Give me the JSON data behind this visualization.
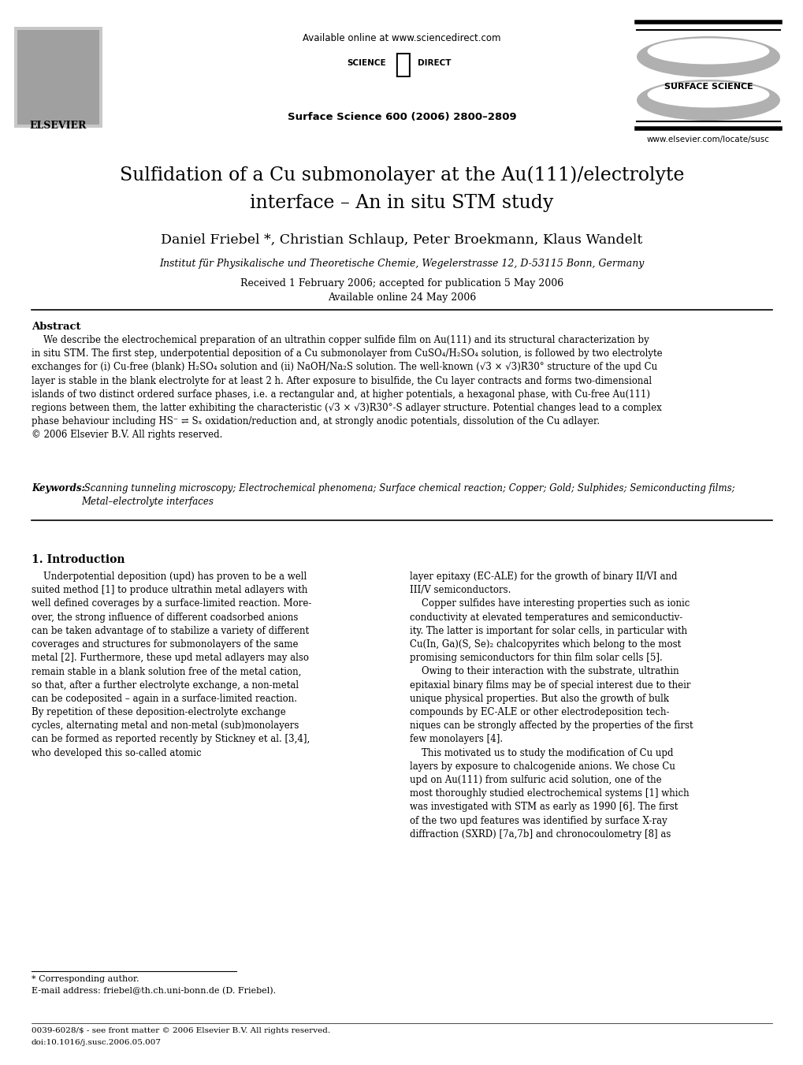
{
  "bg_color": "#ffffff",
  "title_line1": "Sulfidation of a Cu submonolayer at the Au(111)/electrolyte",
  "title_line2": "interface – An in situ STM study",
  "authors": "Daniel Friebel *, Christian Schlaup, Peter Broekmann, Klaus Wandelt",
  "affiliation": "Institut für Physikalische und Theoretische Chemie, Wegelerstrasse 12, D-53115 Bonn, Germany",
  "received": "Received 1 February 2006; accepted for publication 5 May 2006",
  "available": "Available online 24 May 2006",
  "journal_header": "Surface Science 600 (2006) 2800–2809",
  "available_online": "Available online at www.sciencedirect.com",
  "sciencedirect_left": "SCIENCE",
  "sciencedirect_right": "DIRECT",
  "elsevier_text": "ELSEVIER",
  "surface_science_text": "SURFACE SCIENCE",
  "website": "www.elsevier.com/locate/susc",
  "abstract_title": "Abstract",
  "abstract_text": "    We describe the electrochemical preparation of an ultrathin copper sulfide film on Au(111) and its structural characterization by\nin situ STM. The first step, underpotential deposition of a Cu submonolayer from CuSO₄/H₂SO₄ solution, is followed by two electrolyte\nexchanges for (i) Cu-free (blank) H₂SO₄ solution and (ii) NaOH/Na₂S solution. The well-known (√3 × √3)R30° structure of the upd Cu\nlayer is stable in the blank electrolyte for at least 2 h. After exposure to bisulfide, the Cu layer contracts and forms two-dimensional\nislands of two distinct ordered surface phases, i.e. a rectangular and, at higher potentials, a hexagonal phase, with Cu-free Au(111)\nregions between them, the latter exhibiting the characteristic (√3 × √3)R30°-S adlayer structure. Potential changes lead to a complex\nphase behaviour including HS⁻ ⇌ Sₓ oxidation/reduction and, at strongly anodic potentials, dissolution of the Cu adlayer.\n© 2006 Elsevier B.V. All rights reserved.",
  "keywords_label": "Keywords:",
  "keywords_text": " Scanning tunneling microscopy; Electrochemical phenomena; Surface chemical reaction; Copper; Gold; Sulphides; Semiconducting films;\nMetal–electrolyte interfaces",
  "section1_title": "1. Introduction",
  "intro_col1_para1": "    Underpotential deposition (upd) has proven to be a well\nsuited method [1] to produce ultrathin metal adlayers with\nwell defined coverages by a surface-limited reaction. More-\nover, the strong influence of different coadsorbed anions\ncan be taken advantage of to stabilize a variety of different\ncoverages and structures for submonolayers of the same\nmetal [2]. Furthermore, these upd metal adlayers may also\nremain stable in a blank solution free of the metal cation,\nso that, after a further electrolyte exchange, a non-metal\ncan be codeposited – again in a surface-limited reaction.\nBy repetition of these deposition-electrolyte exchange\ncycles, alternating metal and non-metal (sub)monolayers\ncan be formed as reported recently by Stickney et al. [3,4],\nwho developed this so-called atomic",
  "intro_col2_para1": "layer epitaxy (EC-ALE) for the growth of binary II/VI and\nIII/V semiconductors.\n    Copper sulfides have interesting properties such as ionic\nconductivity at elevated temperatures and semiconductiv-\nity. The latter is important for solar cells, in particular with\nCu(In, Ga)(S, Se)₂ chalcopyrites which belong to the most\npromising semiconductors for thin film solar cells [5].\n    Owing to their interaction with the substrate, ultrathin\nepitaxial binary films may be of special interest due to their\nunique physical properties. But also the growth of bulk\ncompounds by EC-ALE or other electrodeposition tech-\nniques can be strongly affected by the properties of the first\nfew monolayers [4].\n    This motivated us to study the modification of Cu upd\nlayers by exposure to chalcogenide anions. We chose Cu\nupd on Au(111) from sulfuric acid solution, one of the\nmost thoroughly studied electrochemical systems [1] which\nwas investigated with STM as early as 1990 [6]. The first\nof the two upd features was identified by surface X-ray\ndiffraction (SXRD) [7a,7b] and chronocoulometry [8] as",
  "footnote_star": "* Corresponding author.",
  "footnote_email": "E-mail address: friebel@th.ch.uni-bonn.de (D. Friebel).",
  "footer_line1": "0039-6028/$ - see front matter © 2006 Elsevier B.V. All rights reserved.",
  "footer_line2": "doi:10.1016/j.susc.2006.05.007"
}
